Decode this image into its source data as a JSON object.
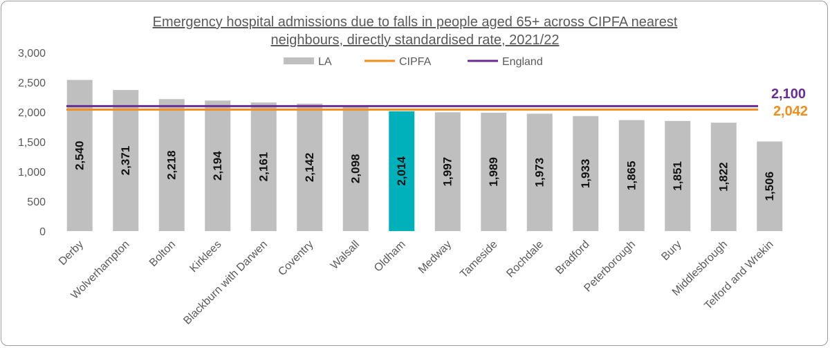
{
  "chart_data": {
    "type": "bar",
    "title_lines": [
      "Emergency hospital admissions due to falls in people aged 65+ across CIPFA nearest",
      "neighbours, directly standardised rate, 2021/22"
    ],
    "categories": [
      "Derby",
      "Wolverhampton",
      "Bolton",
      "Kirklees",
      "Blackburn with Darwen",
      "Coventry",
      "Walsall",
      "Oldham",
      "Medway",
      "Tameside",
      "Rochdale",
      "Bradford",
      "Peterborough",
      "Bury",
      "Middlesbrough",
      "Telford and Wrekin"
    ],
    "series": [
      {
        "name": "LA",
        "values": [
          2540,
          2371,
          2218,
          2194,
          2161,
          2142,
          2098,
          2014,
          1997,
          1989,
          1973,
          1933,
          1865,
          1851,
          1822,
          1506
        ]
      }
    ],
    "value_labels": [
      "2,540",
      "2,371",
      "2,218",
      "2,194",
      "2,161",
      "2,142",
      "2,098",
      "2,014",
      "1,997",
      "1,989",
      "1,973",
      "1,933",
      "1,865",
      "1,851",
      "1,822",
      "1,506"
    ],
    "highlight_category": "Oldham",
    "reference_lines": [
      {
        "name": "CIPFA",
        "value": 2042,
        "label": "2,042",
        "color": "#F28C1B"
      },
      {
        "name": "England",
        "value": 2100,
        "label": "2,100",
        "color": "#6B2C91"
      }
    ],
    "ylim": [
      0,
      3000
    ],
    "yticks": [
      0,
      500,
      1000,
      1500,
      2000,
      2500,
      3000
    ],
    "ytick_labels": [
      "0",
      "500",
      "1,000",
      "1,500",
      "2,000",
      "2,500",
      "3,000"
    ],
    "legend": {
      "position": "top",
      "items": [
        "LA",
        "CIPFA",
        "England"
      ]
    },
    "grid": false,
    "colors": {
      "bar": "#BFBFBF",
      "highlight": "#00B0BA",
      "axis_text": "#595959",
      "label_text": "#111111"
    }
  }
}
